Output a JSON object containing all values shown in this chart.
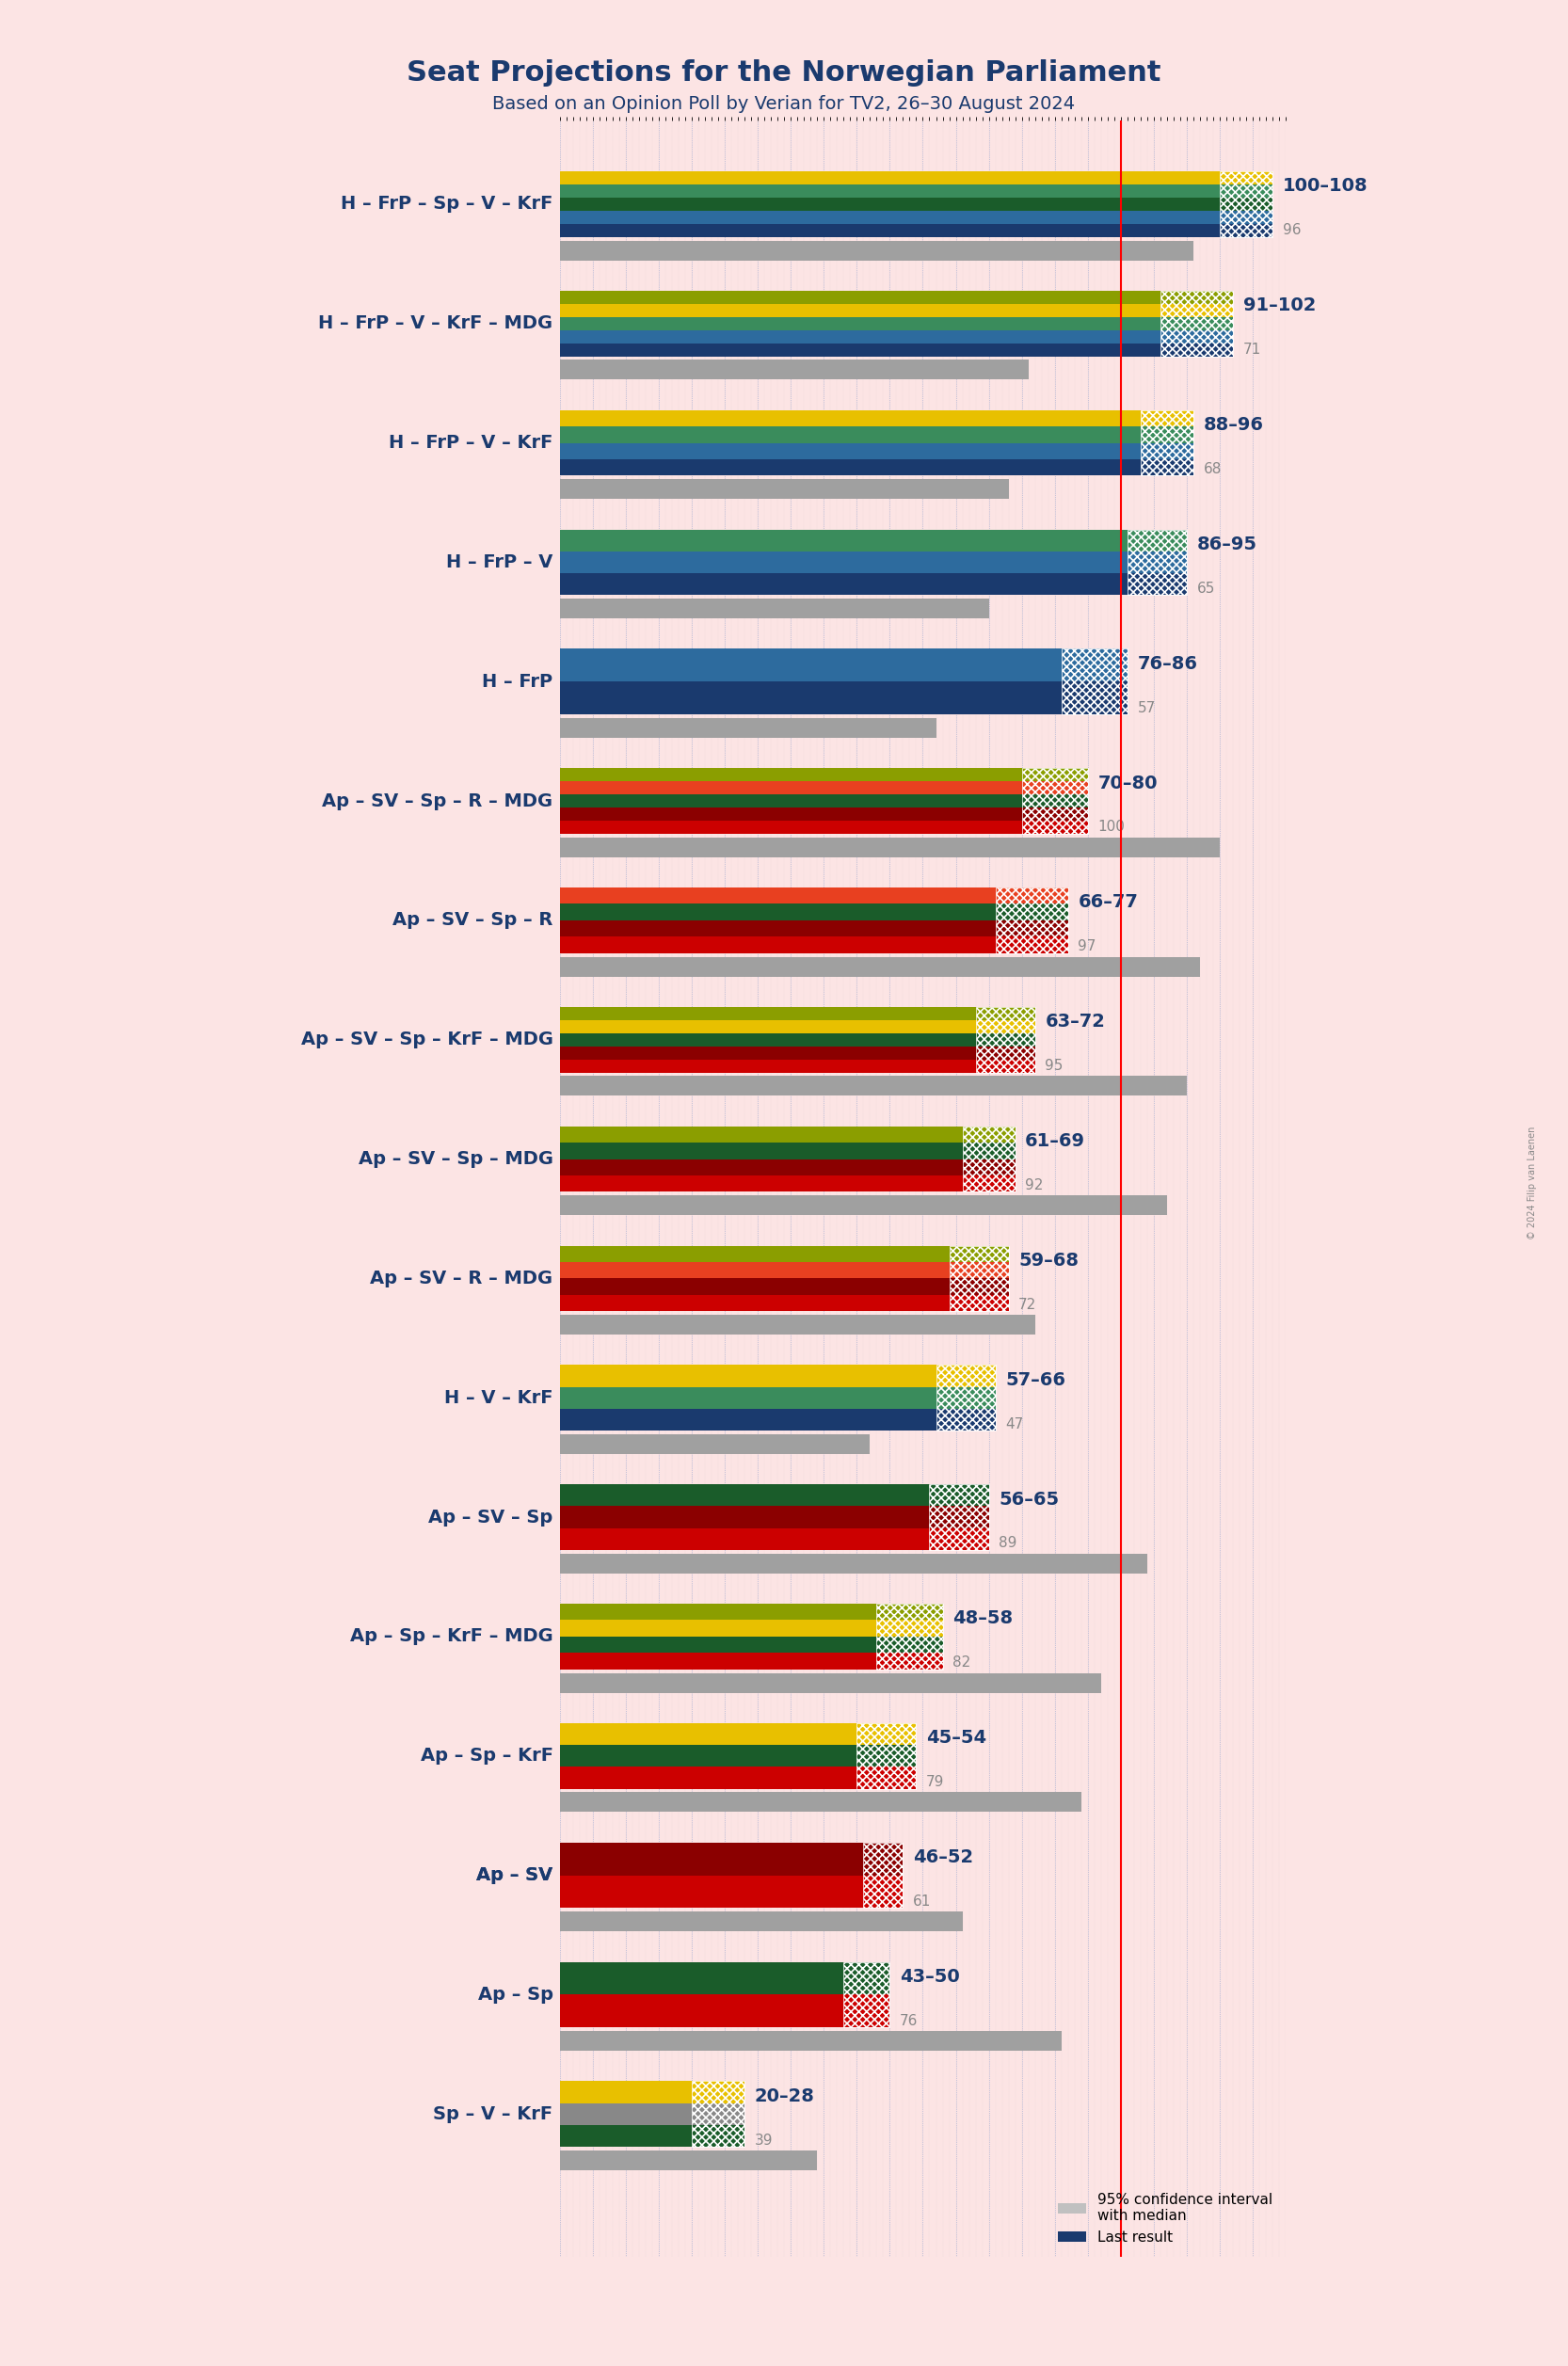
{
  "title": "Seat Projections for the Norwegian Parliament",
  "subtitle": "Based on an Opinion Poll by Verian for TV2, 26–30 August 2024",
  "background_color": "#fce4e4",
  "coalitions": [
    {
      "name": "H – FrP – Sp – V – KrF",
      "low": 100,
      "high": 108,
      "last": 96,
      "colors": [
        "#1a4a8c",
        "#1a4a8c",
        "#1a6b3c",
        "#1a6b3c",
        "#d4a900",
        "#d4a900"
      ],
      "type": "right"
    },
    {
      "name": "H – FrP – V – KrF – MDG",
      "low": 91,
      "high": 102,
      "last": 71,
      "colors": [
        "#1a4a8c",
        "#1a4a8c",
        "#1a6b3c",
        "#1a6b3c",
        "#d4a900",
        "#d4a900"
      ],
      "type": "right"
    },
    {
      "name": "H – FrP – V – KrF",
      "low": 88,
      "high": 96,
      "last": 68,
      "colors": [
        "#1a4a8c",
        "#1a4a8c",
        "#1a6b3c",
        "#1a6b3c",
        "#d4a900",
        "#d4a900"
      ],
      "type": "right"
    },
    {
      "name": "H – FrP – V",
      "low": 86,
      "high": 95,
      "last": 65,
      "colors": [
        "#1a4a8c",
        "#1a4a8c",
        "#1a6b3c",
        "#1a6b3c"
      ],
      "type": "right"
    },
    {
      "name": "H – FrP",
      "low": 76,
      "high": 86,
      "last": 57,
      "colors": [
        "#1a4a8c",
        "#1a4a8c"
      ],
      "type": "right"
    },
    {
      "name": "Ap – SV – Sp – R – MDG",
      "low": 70,
      "high": 80,
      "last": 100,
      "colors": [
        "#cc0000",
        "#cc0000",
        "#2d8c2d",
        "#2d8c2d",
        "#8b6914",
        "#8b6914"
      ],
      "type": "left"
    },
    {
      "name": "Ap – SV – Sp – R",
      "low": 66,
      "high": 77,
      "last": 97,
      "colors": [
        "#cc0000",
        "#cc0000",
        "#2d8c2d",
        "#2d8c2d"
      ],
      "type": "left"
    },
    {
      "name": "Ap – SV – Sp – KrF – MDG",
      "low": 63,
      "high": 72,
      "last": 95,
      "colors": [
        "#cc0000",
        "#cc0000",
        "#2d8c2d",
        "#2d8c2d",
        "#d4a900",
        "#8b6914"
      ],
      "type": "left"
    },
    {
      "name": "Ap – SV – Sp – MDG",
      "low": 61,
      "high": 69,
      "last": 92,
      "colors": [
        "#cc0000",
        "#cc0000",
        "#2d8c2d",
        "#2d8c2d",
        "#8b6914"
      ],
      "type": "left"
    },
    {
      "name": "Ap – SV – R – MDG",
      "low": 59,
      "high": 68,
      "last": 72,
      "colors": [
        "#cc0000",
        "#cc0000",
        "#8b6914"
      ],
      "type": "left"
    },
    {
      "name": "H – V – KrF",
      "low": 57,
      "high": 66,
      "last": 47,
      "colors": [
        "#1a4a8c",
        "#1a4a8c",
        "#d4a900",
        "#d4a900"
      ],
      "type": "right"
    },
    {
      "name": "Ap – SV – Sp",
      "low": 56,
      "high": 65,
      "last": 89,
      "colors": [
        "#cc0000",
        "#cc0000",
        "#2d8c2d",
        "#2d8c2d"
      ],
      "type": "left"
    },
    {
      "name": "Ap – Sp – KrF – MDG",
      "low": 48,
      "high": 58,
      "last": 82,
      "colors": [
        "#cc0000",
        "#cc0000",
        "#2d8c2d",
        "#2d8c2d",
        "#d4a900",
        "#8b6914"
      ],
      "type": "left"
    },
    {
      "name": "Ap – Sp – KrF",
      "low": 45,
      "high": 54,
      "last": 79,
      "colors": [
        "#cc0000",
        "#cc0000",
        "#2d8c2d",
        "#2d8c2d",
        "#d4a900"
      ],
      "type": "left"
    },
    {
      "name": "Ap – SV",
      "low": 46,
      "high": 52,
      "last": 61,
      "colors": [
        "#cc0000",
        "#cc0000"
      ],
      "type": "left",
      "underline": true
    },
    {
      "name": "Ap – Sp",
      "low": 43,
      "high": 50,
      "last": 76,
      "colors": [
        "#cc0000",
        "#cc0000",
        "#2d8c2d",
        "#2d8c2d"
      ],
      "type": "left"
    },
    {
      "name": "Sp – V – KrF",
      "low": 20,
      "high": 28,
      "last": 39,
      "colors": [
        "#2d8c2d",
        "#2d8c2d",
        "#d4a900",
        "#d4a900"
      ],
      "type": "left"
    }
  ],
  "xlim": [
    0,
    110
  ],
  "majority_line": 85,
  "tick_interval": 5,
  "bar_height": 0.55,
  "stripe_count": 5,
  "right_pattern_color": "#ffffff",
  "left_pattern_color": "#ffffff"
}
